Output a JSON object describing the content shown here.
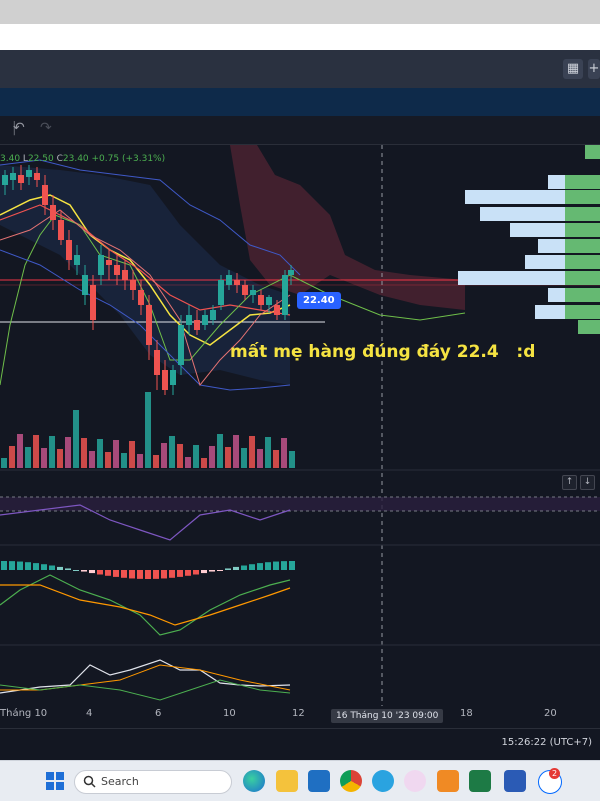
{
  "toolbar": {
    "undo_icon": "undo-icon",
    "redo_icon": "redo-icon"
  },
  "header": {
    "layout_icon": "grid-layout-icon",
    "add_icon": "plus-icon"
  },
  "legend": {
    "ohlc_prefix": "3.40",
    "low_label": "L",
    "low_value": "22.50",
    "close_label": "C",
    "close_value": "23.40",
    "change": "+0.75 (+3.31%)"
  },
  "chart": {
    "last_price": "22.40",
    "annotation": "mất mẹ hàng đúng đáy 22.4   :d",
    "colors": {
      "up": "#26a69a",
      "down": "#ef5350",
      "price_tag": "#2962ff",
      "annotation": "#f5e342",
      "cloud": "#5a2a35"
    }
  },
  "time_axis": {
    "ticks": [
      "Tháng 10",
      "4",
      "6",
      "10",
      "12",
      "18",
      "20"
    ],
    "crosshair_label": "16 Tháng 10 '23   09:00"
  },
  "status": {
    "clock": "15:26:22 (UTC+7)"
  },
  "taskbar": {
    "search_placeholder": "Search",
    "badge_count": "2",
    "apps": [
      "windows-start-icon",
      "edge-icon",
      "file-explorer-icon",
      "mail-icon",
      "chrome-icon",
      "telegram-icon",
      "chat-icon",
      "app-g-icon",
      "excel-icon",
      "word-icon",
      "zalo-icon"
    ]
  }
}
